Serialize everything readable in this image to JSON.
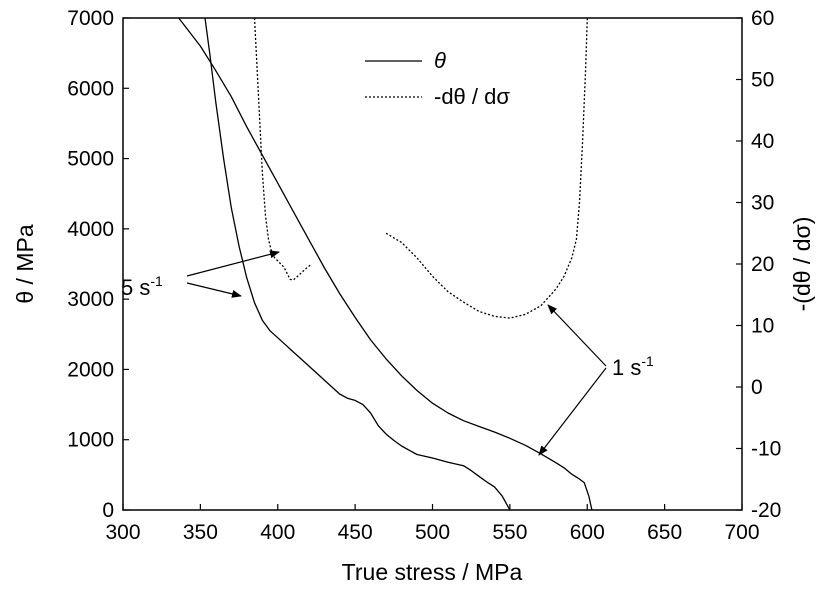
{
  "chart_data": {
    "type": "line",
    "xlabel": "True stress / MPa",
    "ylabel_left": "θ / MPa",
    "ylabel_right": "-(dθ / dσ)",
    "xlim": [
      300,
      700
    ],
    "ylim_left": [
      0,
      7000
    ],
    "ylim_right": [
      -20,
      60
    ],
    "x_ticks": [
      300,
      350,
      400,
      450,
      500,
      550,
      600,
      650,
      700
    ],
    "y_left_ticks": [
      0,
      1000,
      2000,
      3000,
      4000,
      5000,
      6000,
      7000
    ],
    "y_right_ticks": [
      -20,
      -10,
      0,
      10,
      20,
      30,
      40,
      50,
      60
    ],
    "grid": false,
    "legend_position": "top-center",
    "legend": [
      {
        "label": "θ",
        "style": "solid"
      },
      {
        "label": "-dθ / dσ",
        "style": "dotted"
      }
    ],
    "series": [
      {
        "axis": "left",
        "style": "solid",
        "group": "5 s-1",
        "x": [
          353,
          356,
          360,
          365,
          370,
          375,
          380,
          385,
          390,
          395,
          400,
          405,
          410,
          415,
          420,
          425,
          430,
          435,
          440,
          445,
          450,
          455,
          460,
          465,
          470,
          475,
          480,
          485,
          490,
          500,
          510,
          520,
          525,
          530,
          535,
          540,
          545,
          550
        ],
        "y": [
          7000,
          6500,
          5800,
          5000,
          4300,
          3750,
          3300,
          2950,
          2700,
          2550,
          2450,
          2350,
          2250,
          2150,
          2050,
          1950,
          1850,
          1750,
          1650,
          1590,
          1560,
          1500,
          1380,
          1200,
          1080,
          990,
          910,
          850,
          790,
          740,
          680,
          630,
          560,
          480,
          400,
          330,
          200,
          0
        ]
      },
      {
        "axis": "left",
        "style": "solid",
        "group": "1 s-1",
        "x": [
          336,
          350,
          360,
          370,
          380,
          390,
          400,
          410,
          420,
          430,
          440,
          450,
          460,
          470,
          480,
          490,
          500,
          510,
          520,
          530,
          540,
          550,
          560,
          570,
          580,
          585,
          590,
          595,
          598,
          601,
          603
        ],
        "y": [
          7000,
          6600,
          6250,
          5880,
          5450,
          5050,
          4650,
          4250,
          3850,
          3450,
          3080,
          2740,
          2420,
          2150,
          1910,
          1700,
          1520,
          1380,
          1270,
          1190,
          1110,
          1020,
          920,
          800,
          670,
          600,
          510,
          440,
          390,
          200,
          0
        ]
      },
      {
        "axis": "right",
        "style": "dotted",
        "group": "5 s-1",
        "x": [
          385,
          386,
          388,
          390,
          392,
          394,
          396,
          398,
          400,
          402,
          404,
          406,
          408,
          410,
          412,
          415,
          418,
          421
        ],
        "y": [
          60,
          55,
          45,
          35,
          28,
          24,
          22,
          21,
          20.5,
          20,
          19.5,
          18.5,
          17.5,
          17.4,
          17.8,
          18.5,
          19.2,
          19.8
        ]
      },
      {
        "axis": "right",
        "style": "dotted",
        "group": "1 s-1",
        "x": [
          470,
          480,
          490,
          500,
          510,
          520,
          530,
          540,
          550,
          560,
          570,
          580,
          585,
          590,
          593,
          595,
          597,
          599,
          600
        ],
        "y": [
          25,
          23.5,
          21,
          18,
          15.5,
          13.8,
          12.3,
          11.5,
          11.2,
          11.8,
          13.2,
          16,
          18,
          21,
          24,
          30,
          40,
          52,
          60
        ]
      }
    ],
    "annotations": [
      {
        "text": "5 s",
        "superscript": "-1",
        "points_to": [
          "dotted 5 s-1 curve",
          "solid 5 s-1 curve"
        ]
      },
      {
        "text": "1 s",
        "superscript": "-1",
        "points_to": [
          "dotted 1 s-1 curve",
          "solid 1 s-1 curve"
        ]
      }
    ]
  }
}
